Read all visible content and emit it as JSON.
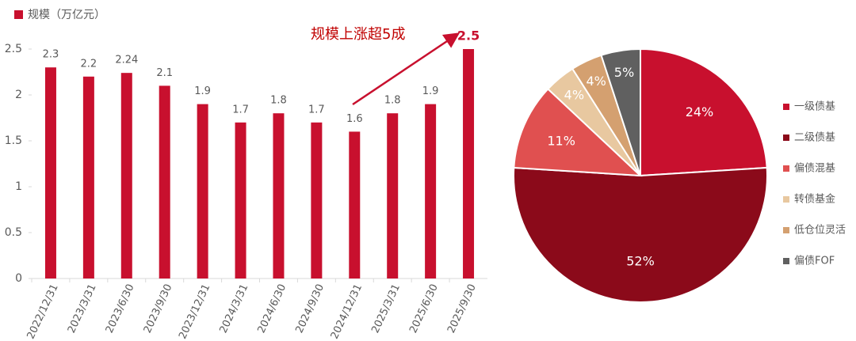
{
  "chart_data": [
    {
      "type": "bar",
      "legend": "规模（万亿元）",
      "annotation": "规模上涨超5成",
      "categories": [
        "2022/12/31",
        "2023/3/31",
        "2023/6/30",
        "2023/9/30",
        "2023/12/31",
        "2024/3/31",
        "2024/6/30",
        "2024/9/30",
        "2024/12/31",
        "2025/3/31",
        "2025/6/30",
        "2025/9/30"
      ],
      "values": [
        2.3,
        2.2,
        2.24,
        2.1,
        1.9,
        1.7,
        1.8,
        1.7,
        1.6,
        1.8,
        1.9,
        2.5
      ],
      "color": "#c8102e",
      "ylim": [
        0,
        2.5
      ],
      "yticks": [
        0,
        0.5,
        1,
        1.5,
        2,
        2.5
      ]
    },
    {
      "type": "pie",
      "categories": [
        "一级债基",
        "二级债基",
        "偏债混基",
        "转债基金",
        "低仓位灵活",
        "偏债FOF"
      ],
      "values": [
        24,
        52,
        11,
        4,
        4,
        5
      ],
      "value_labels": [
        "24%",
        "52%",
        "11%",
        "4%",
        "4%",
        "5%"
      ],
      "colors": [
        "#c8102e",
        "#8b0a1a",
        "#e05050",
        "#e8c8a0",
        "#d4a070",
        "#606060"
      ]
    }
  ]
}
